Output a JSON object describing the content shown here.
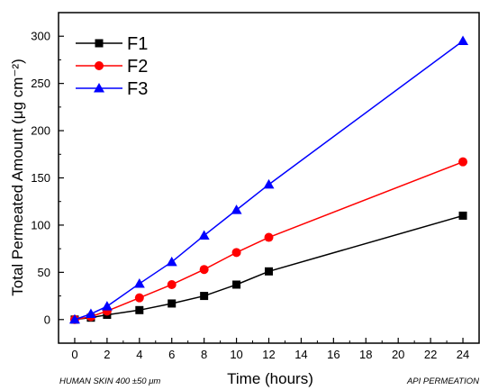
{
  "chart_data": {
    "type": "line",
    "xlabel": "Time (hours)",
    "ylabel": "Total Permeated Amount (μg cm⁻²)",
    "xlim": [
      -1,
      25
    ],
    "ylim": [
      -25,
      325
    ],
    "xticks": [
      0,
      2,
      4,
      6,
      8,
      10,
      12,
      14,
      16,
      18,
      20,
      22,
      24
    ],
    "yticks": [
      0,
      50,
      100,
      150,
      200,
      250,
      300
    ],
    "grid": false,
    "legend_position": "top-left",
    "x": [
      0,
      1,
      2,
      4,
      6,
      8,
      10,
      12,
      24
    ],
    "series": [
      {
        "name": "F1",
        "color": "#000000",
        "marker": "square",
        "values": [
          0,
          2,
          5,
          10,
          17,
          25,
          37,
          51,
          110
        ]
      },
      {
        "name": "F2",
        "color": "#ff0000",
        "marker": "circle",
        "values": [
          0,
          3,
          9,
          23,
          37,
          53,
          71,
          87,
          167
        ]
      },
      {
        "name": "F3",
        "color": "#0000ff",
        "marker": "triangle",
        "values": [
          0,
          6,
          14,
          38,
          61,
          89,
          116,
          143,
          295
        ]
      }
    ],
    "annotations": {
      "left": "HUMAN SKIN 400 ±50 μm",
      "right": "API PERMEATION"
    }
  }
}
